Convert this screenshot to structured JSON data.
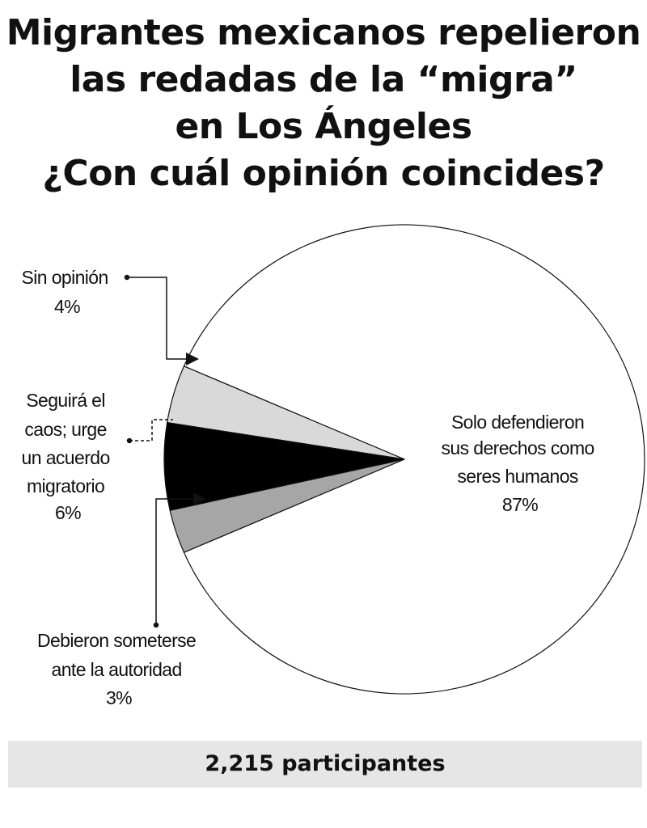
{
  "title_lines": [
    "Migrantes mexicanos repelieron",
    "las redadas de la “migra”",
    "en Los Ángeles",
    "¿Con cuál opinión coincides?"
  ],
  "chart_data": {
    "type": "pie",
    "slices": [
      {
        "label": "Solo defendieron sus derechos como seres humanos",
        "value": 87,
        "display": "87%",
        "color": "#ffffff"
      },
      {
        "label": "Sin opinión",
        "value": 4,
        "display": "4%",
        "color": "#d9d9d9"
      },
      {
        "label": "Seguirá el caos; urge un acuerdo migratorio",
        "value": 6,
        "display": "6%",
        "color": "#000000"
      },
      {
        "label": "Debieron someterse ante la autoridad",
        "value": 3,
        "display": "3%",
        "color": "#a6a6a6"
      }
    ],
    "labels": {
      "main": [
        "Solo defendieron",
        "sus derechos como",
        "seres humanos",
        "87%"
      ],
      "sin_opinion": [
        "Sin opinión",
        "4%"
      ],
      "seguira": [
        "Seguirá el",
        "caos; urge",
        "un acuerdo",
        "migratorio",
        "6%"
      ],
      "debieron": [
        "Debieron someterse",
        "ante la autoridad",
        "3%"
      ]
    }
  },
  "footer": {
    "participants": "2,215 participantes"
  }
}
